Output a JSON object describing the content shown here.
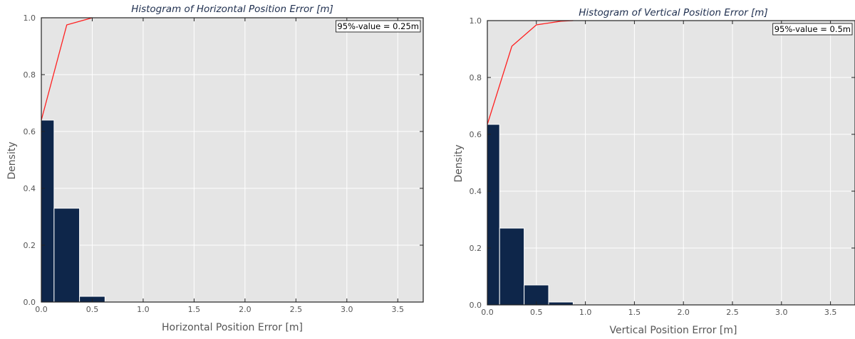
{
  "chart_data": [
    {
      "type": "bar",
      "title": "Histogram of Horizontal Position Error [m]",
      "xlabel": "Horizontal Position Error [m]",
      "ylabel": "Density",
      "xlim": [
        0,
        3.75
      ],
      "ylim": [
        0,
        1.0
      ],
      "x_ticks": [
        "0.0",
        "0.5",
        "1.0",
        "1.5",
        "2.0",
        "2.5",
        "3.0",
        "3.5"
      ],
      "y_ticks": [
        "0.0",
        "0.2",
        "0.4",
        "0.6",
        "0.8",
        "1.0"
      ],
      "grid": true,
      "bins": [
        {
          "x0": 0.0,
          "x1": 0.125,
          "value": 0.64
        },
        {
          "x0": 0.125,
          "x1": 0.375,
          "value": 0.33
        },
        {
          "x0": 0.375,
          "x1": 0.625,
          "value": 0.02
        }
      ],
      "cdf": {
        "x": [
          0.0,
          0.25,
          0.5
        ],
        "y": [
          0.64,
          0.975,
          1.0
        ]
      },
      "annotation": "95%-value = 0.25m"
    },
    {
      "type": "bar",
      "title": "Histogram of Vertical Position Error [m]",
      "xlabel": "Vertical Position Error [m]",
      "ylabel": "Density",
      "xlim": [
        0,
        3.75
      ],
      "ylim": [
        0,
        1.0
      ],
      "x_ticks": [
        "0.0",
        "0.5",
        "1.0",
        "1.5",
        "2.0",
        "2.5",
        "3.0",
        "3.5"
      ],
      "y_ticks": [
        "0.0",
        "0.2",
        "0.4",
        "0.6",
        "0.8",
        "1.0"
      ],
      "grid": true,
      "bins": [
        {
          "x0": 0.0,
          "x1": 0.125,
          "value": 0.635
        },
        {
          "x0": 0.125,
          "x1": 0.375,
          "value": 0.27
        },
        {
          "x0": 0.375,
          "x1": 0.625,
          "value": 0.07
        },
        {
          "x0": 0.625,
          "x1": 0.875,
          "value": 0.01
        }
      ],
      "cdf": {
        "x": [
          0.0,
          0.25,
          0.5,
          0.75,
          0.875
        ],
        "y": [
          0.635,
          0.91,
          0.985,
          0.998,
          1.0
        ]
      },
      "annotation": "95%-value = 0.5m"
    }
  ],
  "colors": {
    "bar": "#0e264a",
    "cdf": "#ff2020",
    "plot_bg": "#e5e5e5",
    "grid": "#ffffff"
  }
}
